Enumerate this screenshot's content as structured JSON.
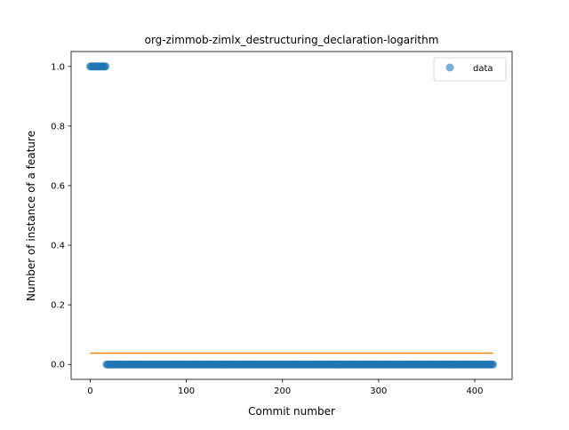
{
  "chart_data": {
    "type": "scatter",
    "title": "org-zimmob-zimlx_destructuring_declaration-logarithm",
    "xlabel": "Commit number",
    "ylabel": "Number of instance of a feature",
    "xlim": [
      -19.85,
      438.85
    ],
    "ylim": [
      -0.05,
      1.05
    ],
    "xticks": [
      0,
      100,
      200,
      300,
      400
    ],
    "yticks": [
      0.0,
      0.2,
      0.4,
      0.6,
      0.8,
      1.0
    ],
    "ytick_labels": [
      "0.0",
      "0.2",
      "0.4",
      "0.6",
      "0.8",
      "1.0"
    ],
    "grid": false,
    "legend_position": "top-right",
    "colors": {
      "data": "#1f77b4",
      "trend": "#ff7f0e"
    },
    "series": [
      {
        "name": "data",
        "kind": "scatter",
        "segments": [
          {
            "x_from": 0,
            "x_to": 16,
            "y": 1.0
          },
          {
            "x_from": 17,
            "x_to": 419,
            "y": 0.0
          }
        ]
      },
      {
        "kind": "line",
        "x": [
          0,
          419
        ],
        "y": [
          0.0381,
          0.0381
        ]
      }
    ]
  }
}
